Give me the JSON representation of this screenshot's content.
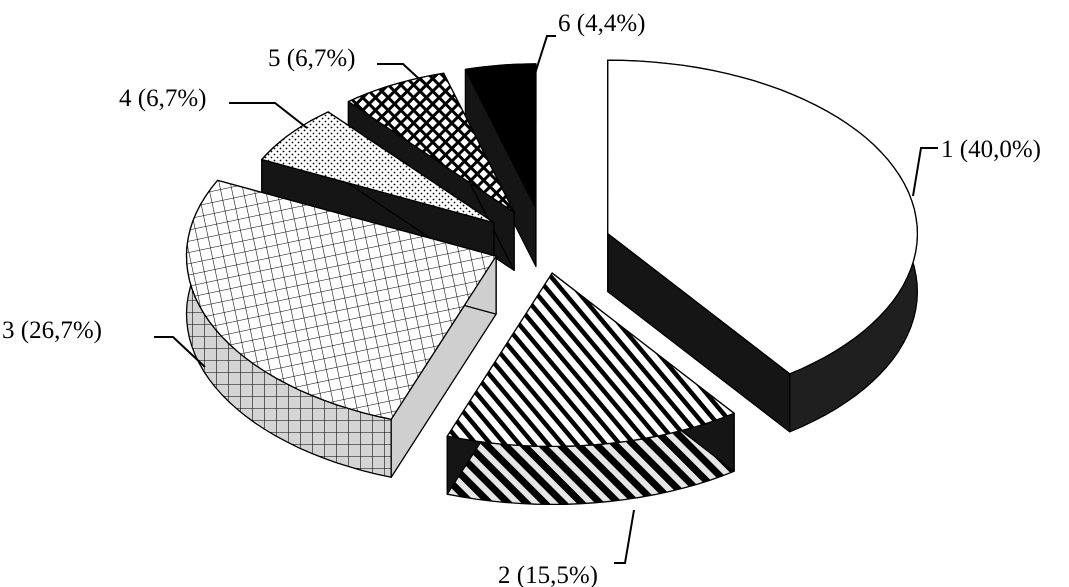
{
  "chart_data": {
    "type": "pie",
    "style": "3d-exploded",
    "slices": [
      {
        "category": "1",
        "percent": 40.0,
        "label": "1 (40,0%)",
        "pattern": "plain-white",
        "side_color": "#1a1a1a"
      },
      {
        "category": "2",
        "percent": 15.5,
        "label": "2 (15,5%)",
        "pattern": "diagonal-stripes",
        "side_color": "#1a1a1a"
      },
      {
        "category": "3",
        "percent": 26.7,
        "label": "3 (26,7%)",
        "pattern": "grid",
        "side_color": "#d9d9d9"
      },
      {
        "category": "4",
        "percent": 6.7,
        "label": "4 (6,7%)",
        "pattern": "dots",
        "side_color": "#1a1a1a"
      },
      {
        "category": "5",
        "percent": 6.7,
        "label": "5 (6,7%)",
        "pattern": "diagonal-lattice",
        "side_color": "#1a1a1a"
      },
      {
        "category": "6",
        "percent": 4.4,
        "label": "6 (4,4%)",
        "pattern": "solid-black",
        "side_color": "#000000"
      }
    ],
    "legend": "none",
    "colors": {
      "ink": "#000000",
      "background": "#ffffff"
    }
  }
}
